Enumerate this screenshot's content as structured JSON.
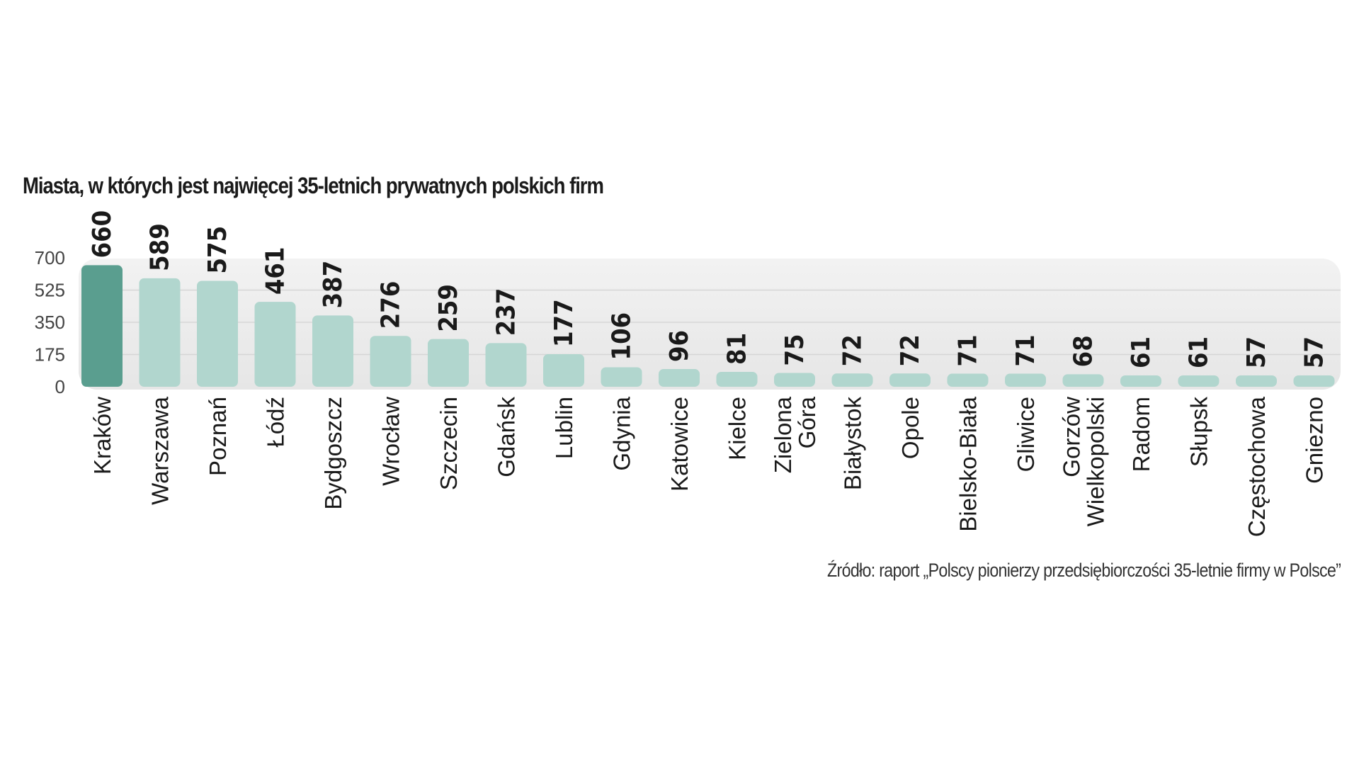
{
  "chart_data": {
    "type": "bar",
    "title": "Miasta, w których jest najwięcej 35-letnich prywatnych polskich firm",
    "source": "Źródło: raport „Polscy pionierzy przedsiębiorczości 35-letnie firmy w Polsce”",
    "categories": [
      "Kraków",
      "Warszawa",
      "Poznań",
      "Łódź",
      "Bydgoszcz",
      "Wrocław",
      "Szczecin",
      "Gdańsk",
      "Lublin",
      "Gdynia",
      "Katowice",
      "Kielce",
      "Zielona Góra",
      "Białystok",
      "Opole",
      "Bielsko-Biała",
      "Gliwice",
      "Gorzów Wielkopolski",
      "Radom",
      "Słupsk",
      "Częstochowa",
      "Gniezno"
    ],
    "values": [
      660,
      589,
      575,
      461,
      387,
      276,
      259,
      237,
      177,
      106,
      96,
      81,
      75,
      72,
      72,
      71,
      71,
      68,
      61,
      61,
      57,
      57
    ],
    "ylim": [
      0,
      700
    ],
    "yticks": [
      0,
      175,
      350,
      525,
      700
    ],
    "grid": true,
    "colors": {
      "highlight": "#5a9e8f",
      "bar": "#b1d6ce",
      "panel": "#ebebeb",
      "grid": "#d6d6d6"
    }
  }
}
